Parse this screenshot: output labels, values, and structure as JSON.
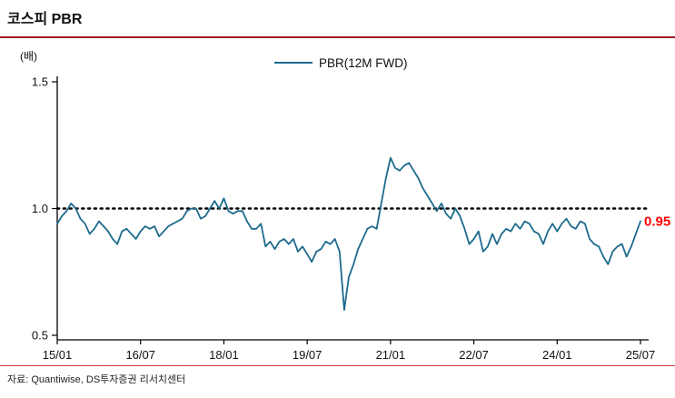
{
  "page": {
    "title": "코스피 PBR",
    "source": "자료: Quantiwise, DS투자증권 리서치센터"
  },
  "chart_data": {
    "type": "line",
    "title": "코스피 PBR",
    "unit_label": "(배)",
    "legend": {
      "label": "PBR(12M FWD)",
      "position": "top-center"
    },
    "ylim": [
      0.5,
      1.5
    ],
    "y_ticks": [
      1.5,
      1.0,
      0.5
    ],
    "x_ticks": [
      "15/01",
      "16/07",
      "18/01",
      "19/07",
      "21/01",
      "22/07",
      "24/01",
      "25/07"
    ],
    "reference_line": {
      "value": 1.0,
      "style": "dotted",
      "color": "#000000"
    },
    "annotation": {
      "text": "0.95",
      "color": "#ff0000"
    },
    "line_color": "#1d6a8d",
    "grid": false,
    "series": [
      {
        "name": "PBR(12M FWD)",
        "x_start": "2015-01",
        "x_end": "2025-07",
        "frequency": "monthly",
        "values": [
          0.94,
          0.97,
          0.99,
          1.02,
          1.0,
          0.96,
          0.94,
          0.9,
          0.92,
          0.95,
          0.93,
          0.91,
          0.88,
          0.86,
          0.91,
          0.92,
          0.9,
          0.88,
          0.91,
          0.93,
          0.92,
          0.93,
          0.89,
          0.91,
          0.93,
          0.94,
          0.95,
          0.96,
          0.99,
          1.0,
          1.0,
          0.96,
          0.97,
          1.0,
          1.03,
          1.0,
          1.04,
          0.99,
          0.98,
          0.99,
          0.99,
          0.95,
          0.92,
          0.92,
          0.94,
          0.85,
          0.87,
          0.84,
          0.87,
          0.88,
          0.86,
          0.88,
          0.83,
          0.85,
          0.82,
          0.79,
          0.83,
          0.84,
          0.87,
          0.86,
          0.88,
          0.83,
          0.6,
          0.73,
          0.78,
          0.84,
          0.88,
          0.92,
          0.93,
          0.92,
          1.02,
          1.12,
          1.2,
          1.16,
          1.15,
          1.17,
          1.18,
          1.15,
          1.12,
          1.08,
          1.05,
          1.02,
          0.99,
          1.02,
          0.98,
          0.96,
          1.0,
          0.97,
          0.92,
          0.86,
          0.88,
          0.91,
          0.83,
          0.85,
          0.9,
          0.86,
          0.9,
          0.92,
          0.91,
          0.94,
          0.92,
          0.95,
          0.94,
          0.91,
          0.9,
          0.86,
          0.91,
          0.94,
          0.91,
          0.94,
          0.96,
          0.93,
          0.92,
          0.95,
          0.94,
          0.88,
          0.86,
          0.85,
          0.81,
          0.78,
          0.83,
          0.85,
          0.86,
          0.81,
          0.85,
          0.9,
          0.95
        ]
      }
    ]
  }
}
